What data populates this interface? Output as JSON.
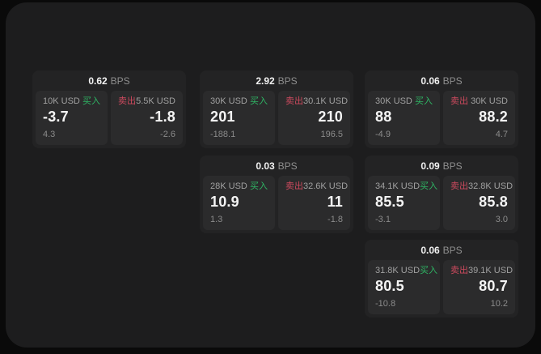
{
  "labels": {
    "unit": "BPS",
    "buy": "买入",
    "sell": "卖出"
  },
  "colors": {
    "buy_green": "#2eb564",
    "sell_red": "#ce4a5e",
    "panel_bg": "#1d1d1e",
    "card_bg": "#232324",
    "cell_bg": "#2b2b2c",
    "value_white": "#f4f4f4",
    "label_gray": "#a0a0a0"
  },
  "cards": [
    {
      "bps": "0.62",
      "buy": {
        "amount": "10K USD",
        "value": "-3.7",
        "delta": "4.3"
      },
      "sell": {
        "amount": "5.5K USD",
        "value": "-1.8",
        "delta": "-2.6"
      }
    },
    {
      "bps": "2.92",
      "buy": {
        "amount": "30K USD",
        "value": "201",
        "delta": "-188.1"
      },
      "sell": {
        "amount": "30.1K USD",
        "value": "210",
        "delta": "196.5"
      }
    },
    {
      "bps": "0.06",
      "buy": {
        "amount": "30K USD",
        "value": "88",
        "delta": "-4.9"
      },
      "sell": {
        "amount": "30K USD",
        "value": "88.2",
        "delta": "4.7"
      }
    },
    {
      "bps": "0.03",
      "buy": {
        "amount": "28K USD",
        "value": "10.9",
        "delta": "1.3"
      },
      "sell": {
        "amount": "32.6K USD",
        "value": "11",
        "delta": "-1.8"
      }
    },
    {
      "bps": "0.09",
      "buy": {
        "amount": "34.1K USD",
        "value": "85.5",
        "delta": "-3.1"
      },
      "sell": {
        "amount": "32.8K USD",
        "value": "85.8",
        "delta": "3.0"
      }
    },
    {
      "bps": "0.06",
      "buy": {
        "amount": "31.8K USD",
        "value": "80.5",
        "delta": "-10.8"
      },
      "sell": {
        "amount": "39.1K USD",
        "value": "80.7",
        "delta": "10.2"
      }
    }
  ]
}
